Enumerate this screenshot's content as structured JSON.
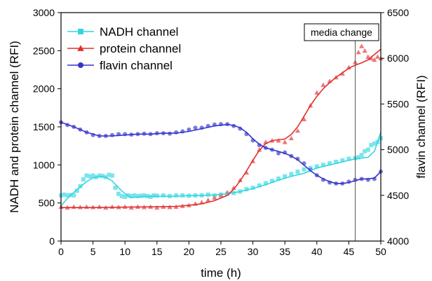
{
  "chart_data": {
    "type": "scatter",
    "title": "",
    "xlabel": "time (h)",
    "ylabel_left": "NADH and protein channel (RFI)",
    "ylabel_right": "flavin channel (RFI)",
    "xlim": [
      0,
      50
    ],
    "ylim_left": [
      0,
      3000
    ],
    "ylim_right": [
      4000,
      6500
    ],
    "x_ticks": [
      "0",
      "5",
      "10",
      "15",
      "20",
      "25",
      "30",
      "35",
      "40",
      "45",
      "50"
    ],
    "y_ticks_left": [
      "0",
      "500",
      "1000",
      "1500",
      "2000",
      "2500",
      "3000"
    ],
    "y_ticks_right": [
      "4000",
      "4500",
      "5000",
      "5500",
      "6000",
      "6500"
    ],
    "grid": false,
    "legend_position": "top-left",
    "annotation": {
      "text": "media change",
      "x": 46
    },
    "series": [
      {
        "name": "NADH channel",
        "axis": "left",
        "marker": "square",
        "color": "#33d6e0",
        "x": [
          0,
          0.5,
          1,
          1.5,
          2,
          2.5,
          3,
          3.5,
          4,
          4.5,
          5,
          5.5,
          6,
          6.5,
          7,
          7.5,
          8,
          8.5,
          9,
          9.5,
          10,
          10.5,
          11,
          11.5,
          12,
          12.5,
          13,
          13.5,
          14,
          14.5,
          15,
          16,
          17,
          18,
          19,
          20,
          21,
          22,
          23,
          24,
          25,
          26,
          27,
          28,
          29,
          30,
          31,
          32,
          33,
          34,
          35,
          36,
          37,
          38,
          39,
          40,
          41,
          42,
          43,
          44,
          45,
          46,
          46.5,
          47,
          47.5,
          48,
          48.5,
          49,
          49.5,
          50
        ],
        "y": [
          600,
          610,
          600,
          605,
          600,
          660,
          720,
          810,
          860,
          850,
          860,
          840,
          860,
          855,
          840,
          870,
          860,
          700,
          620,
          590,
          580,
          600,
          590,
          600,
          590,
          595,
          600,
          590,
          580,
          600,
          595,
          600,
          590,
          600,
          600,
          595,
          600,
          600,
          610,
          600,
          610,
          620,
          630,
          650,
          680,
          700,
          730,
          760,
          790,
          820,
          850,
          880,
          910,
          940,
          960,
          980,
          1000,
          1020,
          1040,
          1060,
          1080,
          1090,
          1100,
          1130,
          1180,
          1200,
          1260,
          1280,
          1300,
          1350
        ]
      },
      {
        "name": "protein channel",
        "axis": "left",
        "marker": "triangle",
        "color": "#e03030",
        "x": [
          0,
          1,
          2,
          3,
          4,
          5,
          6,
          7,
          8,
          9,
          10,
          11,
          12,
          13,
          14,
          15,
          16,
          17,
          18,
          19,
          20,
          21,
          22,
          23,
          24,
          25,
          26,
          27,
          28,
          29,
          30,
          31,
          32,
          33,
          34,
          35,
          36,
          37,
          38,
          39,
          40,
          41,
          42,
          43,
          44,
          45,
          46,
          46.5,
          47,
          47.5,
          48,
          48.5,
          49,
          49.5,
          50
        ],
        "y": [
          450,
          440,
          450,
          445,
          450,
          445,
          450,
          440,
          450,
          445,
          450,
          440,
          450,
          445,
          450,
          440,
          450,
          445,
          450,
          460,
          470,
          490,
          510,
          540,
          570,
          600,
          640,
          700,
          800,
          900,
          1050,
          1200,
          1300,
          1320,
          1320,
          1300,
          1350,
          1450,
          1600,
          1780,
          1950,
          2050,
          2100,
          2150,
          2200,
          2280,
          2350,
          2480,
          2560,
          2500,
          2420,
          2400,
          2380,
          2420,
          2400
        ]
      },
      {
        "name": "flavin channel",
        "axis": "right",
        "marker": "circle",
        "color": "#3333cc",
        "x": [
          0,
          1,
          2,
          3,
          4,
          5,
          6,
          7,
          8,
          9,
          10,
          11,
          12,
          13,
          14,
          15,
          16,
          17,
          18,
          19,
          20,
          21,
          22,
          23,
          24,
          25,
          26,
          27,
          28,
          29,
          30,
          31,
          32,
          33,
          34,
          35,
          36,
          37,
          38,
          39,
          40,
          41,
          42,
          43,
          44,
          45,
          46,
          47,
          48,
          49,
          50
        ],
        "y": [
          5300,
          5270,
          5250,
          5220,
          5190,
          5160,
          5150,
          5150,
          5160,
          5170,
          5170,
          5165,
          5170,
          5175,
          5170,
          5180,
          5180,
          5175,
          5190,
          5200,
          5220,
          5240,
          5240,
          5260,
          5275,
          5280,
          5280,
          5260,
          5230,
          5170,
          5100,
          5050,
          5020,
          5000,
          4960,
          4970,
          4930,
          4900,
          4850,
          4780,
          4720,
          4670,
          4640,
          4630,
          4630,
          4650,
          4670,
          4680,
          4670,
          4680,
          4760
        ]
      }
    ],
    "trend_lines": [
      {
        "series": "NADH channel",
        "x": [
          0,
          1,
          2,
          3,
          4,
          5,
          6,
          7,
          8,
          9,
          10,
          11,
          12,
          13,
          15,
          18,
          20,
          22,
          24,
          26,
          28,
          30,
          32,
          34,
          36,
          38,
          40,
          42,
          44,
          46,
          47,
          48,
          49,
          50
        ],
        "y": [
          460,
          560,
          640,
          710,
          780,
          830,
          850,
          840,
          790,
          700,
          620,
          570,
          580,
          585,
          590,
          590,
          595,
          600,
          605,
          620,
          650,
          690,
          740,
          800,
          850,
          890,
          960,
          1000,
          1040,
          1080,
          1090,
          1100,
          1180,
          1430
        ]
      },
      {
        "series": "protein channel",
        "x": [
          0,
          5,
          10,
          15,
          18,
          20,
          22,
          24,
          26,
          27,
          28,
          29,
          30,
          31,
          32,
          33,
          34,
          35,
          36,
          37,
          38,
          39,
          40,
          41,
          42,
          43,
          44,
          45,
          46,
          47,
          48,
          49,
          50
        ],
        "y": [
          440,
          440,
          445,
          450,
          455,
          470,
          490,
          530,
          600,
          680,
          790,
          920,
          1060,
          1190,
          1280,
          1320,
          1330,
          1340,
          1400,
          1500,
          1640,
          1780,
          1900,
          2000,
          2080,
          2150,
          2210,
          2270,
          2310,
          2340,
          2380,
          2450,
          2520
        ]
      },
      {
        "series": "flavin channel",
        "x": [
          0,
          2,
          4,
          6,
          8,
          10,
          12,
          14,
          16,
          18,
          20,
          22,
          24,
          26,
          27,
          28,
          29,
          30,
          31,
          32,
          33,
          34,
          35,
          36,
          37,
          38,
          39,
          40,
          41,
          42,
          43,
          44,
          45,
          46,
          47,
          48,
          49,
          50
        ],
        "y": [
          5300,
          5250,
          5190,
          5150,
          5150,
          5160,
          5170,
          5170,
          5180,
          5180,
          5200,
          5230,
          5260,
          5275,
          5265,
          5240,
          5190,
          5120,
          5060,
          5020,
          5000,
          4980,
          4960,
          4930,
          4890,
          4830,
          4770,
          4720,
          4680,
          4650,
          4630,
          4630,
          4640,
          4660,
          4680,
          4680,
          4690,
          4760
        ]
      }
    ]
  }
}
